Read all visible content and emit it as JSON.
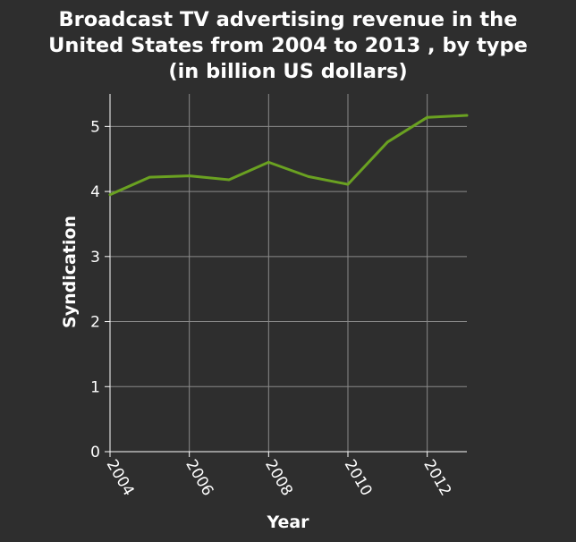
{
  "chart_data": {
    "type": "line",
    "title_lines": [
      "Broadcast TV advertising revenue in the",
      "United States from 2004 to 2013 , by type",
      "(in billion US dollars)"
    ],
    "xlabel": "Year",
    "ylabel": "Syndication",
    "x": [
      2004,
      2005,
      2006,
      2007,
      2008,
      2009,
      2010,
      2011,
      2012,
      2013
    ],
    "series": [
      {
        "values": [
          3.95,
          4.22,
          4.24,
          4.18,
          4.45,
          4.23,
          4.11,
          4.76,
          5.14,
          5.17
        ]
      }
    ],
    "xlim": [
      2004,
      2013
    ],
    "ylim": [
      0,
      5.5
    ],
    "xticks": [
      2004,
      2006,
      2008,
      2010,
      2012
    ],
    "yticks": [
      0,
      1,
      2,
      3,
      4,
      5
    ],
    "grid": true,
    "line_color": "#6aa121",
    "background_color": "#2e2e2e"
  }
}
